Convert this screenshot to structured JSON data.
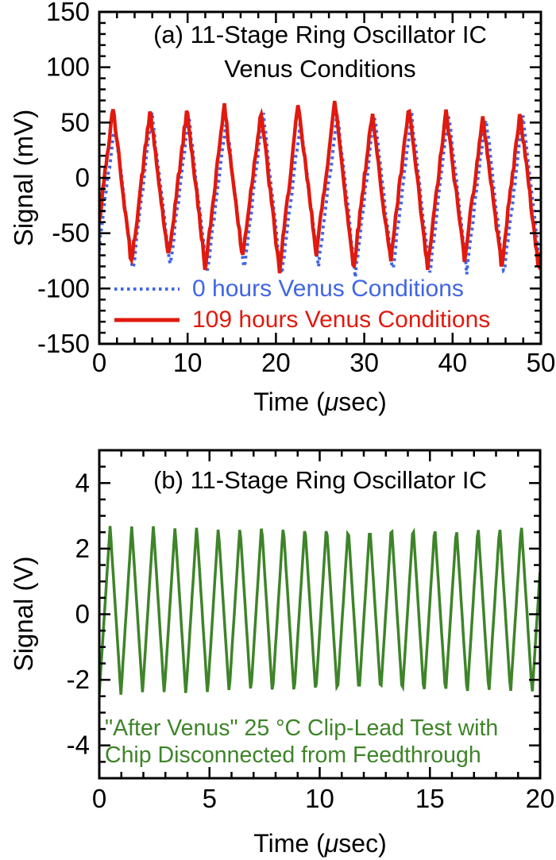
{
  "page": {
    "background": "#ffffff"
  },
  "colors": {
    "axis": "#000000",
    "red": "#e1190e",
    "blue": "#4166e3",
    "green": "#3e8429"
  },
  "chart_data": [
    {
      "type": "line",
      "panel": "a",
      "title_line1": "(a) 11-Stage Ring Oscillator IC",
      "title_line2": "Venus Conditions",
      "ylabel": "Signal (mV)",
      "xlabel_prefix": "Time (",
      "xlabel_mu": "μ",
      "xlabel_suffix": "sec)",
      "xlim": [
        0,
        50
      ],
      "ylim": [
        -150,
        150
      ],
      "x_major_ticks": [
        0,
        10,
        20,
        30,
        40,
        50
      ],
      "x_minor_step": 2,
      "y_major_ticks": [
        150,
        100,
        50,
        0,
        -50,
        -100,
        -150
      ],
      "y_minor_step": 10,
      "grid": false,
      "legend": {
        "position": "inside-bottom-left",
        "entries": [
          {
            "label": "0 hours Venus Conditions",
            "color": "#4166e3",
            "style": "dashed"
          },
          {
            "label": "109 hours Venus Conditions",
            "color": "#e1190e",
            "style": "solid"
          }
        ]
      },
      "series": [
        {
          "id": "zero-hours",
          "name": "0 hours Venus Conditions",
          "color": "#4166e3",
          "style": "dashed",
          "line_width": 4,
          "waveform": {
            "shape": "noisy-triangle",
            "first_peak_us": 1.75,
            "period_us": 4.2,
            "rise_us": 2.15,
            "peak_mv": [
              52,
              57,
              55,
              55,
              58,
              52,
              57,
              60,
              58,
              56,
              54,
              58
            ],
            "trough_mv": [
              -85,
              -87,
              -80,
              -88,
              -84,
              -90,
              -82,
              -86,
              -84,
              -86,
              -83,
              -86
            ],
            "noise_mv": 3.5,
            "extreme_jitter_mv": 3,
            "sample_step_us": 0.13,
            "seed": 7
          }
        },
        {
          "id": "hours-109",
          "name": "109 hours Venus Conditions",
          "color": "#e1190e",
          "style": "solid",
          "line_width": 4.5,
          "waveform": {
            "shape": "noisy-triangle",
            "first_peak_us": 1.55,
            "period_us": 4.19,
            "rise_us": 2.1,
            "peak_mv": [
              65,
              60,
              62,
              66,
              61,
              63,
              71,
              58,
              63,
              60,
              57,
              62
            ],
            "trough_mv": [
              -76,
              -80,
              -72,
              -82,
              -75,
              -83,
              -70,
              -80,
              -76,
              -80,
              -75,
              -80
            ],
            "noise_mv": 4,
            "extreme_jitter_mv": 3,
            "sample_step_us": 0.13,
            "seed": 42
          }
        }
      ]
    },
    {
      "type": "line",
      "panel": "b",
      "title_line1": "(b) 11-Stage Ring Oscillator IC",
      "ylabel": "Signal (V)",
      "xlabel_prefix": "Time (",
      "xlabel_mu": "μ",
      "xlabel_suffix": "sec)",
      "xlim": [
        0,
        20
      ],
      "ylim": [
        -5,
        5
      ],
      "x_major_ticks": [
        0,
        5,
        10,
        15,
        20
      ],
      "x_minor_step": 1,
      "y_major_ticks": [
        4,
        2,
        0,
        -2,
        -4
      ],
      "y_minor_step": 0.5,
      "grid": false,
      "annotation_line1": "\"After Venus\" 25 °C Clip-Lead Test with",
      "annotation_line2": "Chip Disconnected from Feedthrough",
      "annotation_color": "#3e8429",
      "series": [
        {
          "id": "after-venus",
          "name": "After Venus clip-lead test",
          "color": "#3e8429",
          "style": "solid",
          "line_width": 3.5,
          "waveform": {
            "shape": "noisy-triangle",
            "first_peak_us": 0.49,
            "period_us": 0.982,
            "rise_us": 0.49,
            "peak_mv": 2.72,
            "trough_mv": -2.45,
            "noise_mv": 0.02,
            "extreme_jitter_mv": 0.04,
            "sample_step_us": 0.049,
            "seed": 3
          }
        }
      ]
    }
  ]
}
